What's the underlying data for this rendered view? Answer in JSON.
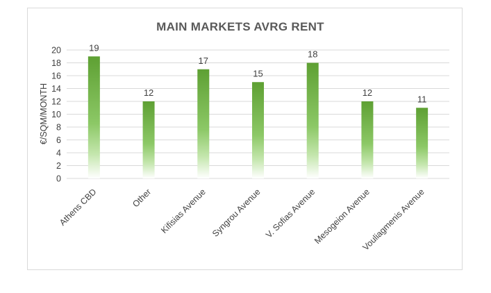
{
  "chart_data": {
    "type": "bar",
    "title": "MAIN MARKETS AVRG RENT",
    "xlabel": "",
    "ylabel": "€/SQM/MONTH",
    "categories": [
      "Athens CBD",
      "Other",
      "Kifisias Avenue",
      "Syngrou Avenue",
      "V. Sofias Avenue",
      "Mesogeion Avenue",
      "Vouliagmenis Avenue"
    ],
    "values": [
      19,
      12,
      17,
      15,
      18,
      12,
      11
    ],
    "ylim": [
      0,
      20
    ],
    "yticks": [
      0,
      2,
      4,
      6,
      8,
      10,
      12,
      14,
      16,
      18,
      20
    ],
    "grid": true,
    "legend": "none",
    "colors": {
      "bar_top": "#5ea033",
      "bar_bottom": "#ffffff",
      "grid": "#d9d9d9",
      "text": "#404040",
      "title": "#595959"
    }
  }
}
